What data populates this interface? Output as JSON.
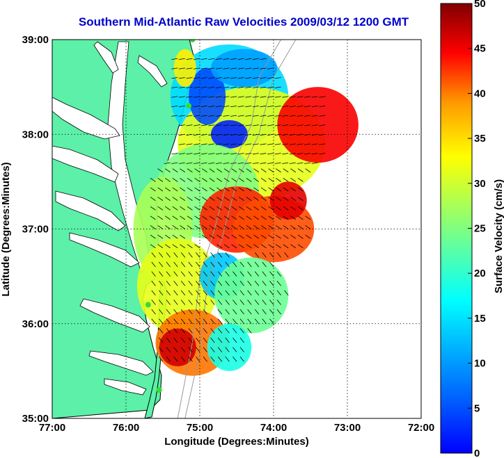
{
  "title": "Southern Mid-Atlantic Raw Velocities 2009/03/12 1200 GMT",
  "map": {
    "xlabel": "Longitude (Degrees:Minutes)",
    "ylabel": "Latitude (Degrees:Minutes)",
    "lon_ticks": [
      "77:00",
      "76:00",
      "75:00",
      "74:00",
      "73:00",
      "72:00"
    ],
    "lat_ticks": [
      "39:00",
      "38:00",
      "37:00",
      "36:00",
      "35:00"
    ],
    "lon_range": [
      -77,
      -72
    ],
    "lat_range": [
      35,
      39
    ],
    "colors": {
      "land": "#5cf0a8",
      "coastline": "#000000",
      "bathymetry": "#999999",
      "station": "#33dd33",
      "arrow": "#000000"
    }
  },
  "colorbar": {
    "label": "Surface Velocity (cm/s)",
    "ticks": [
      "0",
      "5",
      "10",
      "15",
      "20",
      "25",
      "30",
      "35",
      "40",
      "45",
      "50"
    ],
    "range": [
      0,
      50
    ],
    "colormap": "jet"
  }
}
